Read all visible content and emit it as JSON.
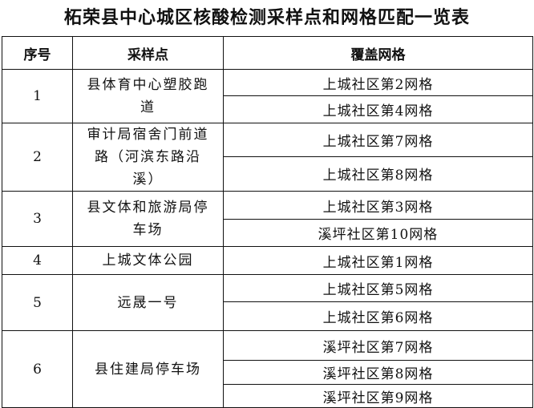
{
  "title": "柘荣县中心城区核酸检测采样点和网格匹配一览表",
  "headers": {
    "no": "序号",
    "site": "采样点",
    "grids": "覆盖网格"
  },
  "rows": [
    {
      "no": "1",
      "site": "县体育中心塑胶跑道",
      "grids": [
        "上城社区第2网格",
        "上城社区第4网格"
      ]
    },
    {
      "no": "2",
      "site": "审计局宿舍门前道路（河滨东路沿溪）",
      "grids": [
        "上城社区第7网格",
        "上城社区第8网格"
      ]
    },
    {
      "no": "3",
      "site": "县文体和旅游局停车场",
      "grids": [
        "上城社区第3网格",
        "溪坪社区第10网格"
      ]
    },
    {
      "no": "4",
      "site": "上城文体公园",
      "grids": [
        "上城社区第1网格"
      ]
    },
    {
      "no": "5",
      "site": "远晟一号",
      "grids": [
        "上城社区第5网格",
        "上城社区第6网格"
      ]
    },
    {
      "no": "6",
      "site": "县住建局停车场",
      "grids": [
        "溪坪社区第7网格",
        "溪坪社区第8网格",
        "溪坪社区第9网格"
      ]
    }
  ]
}
